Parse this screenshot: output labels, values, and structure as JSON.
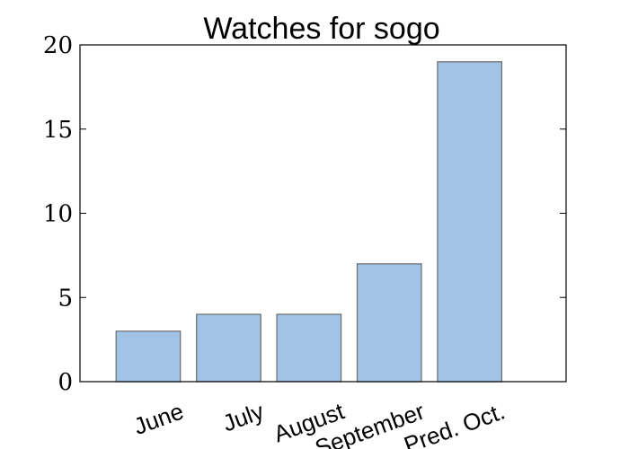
{
  "chart_data": {
    "type": "bar",
    "title": "Watches for sogo",
    "categories": [
      "June",
      "July",
      "August",
      "September",
      "Pred. Oct."
    ],
    "values": [
      3,
      4,
      4,
      7,
      19
    ],
    "xlabel": "",
    "ylabel": "",
    "ylim": [
      0,
      20
    ],
    "yticks": [
      0,
      5,
      10,
      15,
      20
    ],
    "bar_color": "#a1c4e6",
    "bar_edge_color": "#6b6b6b",
    "grid": false
  }
}
